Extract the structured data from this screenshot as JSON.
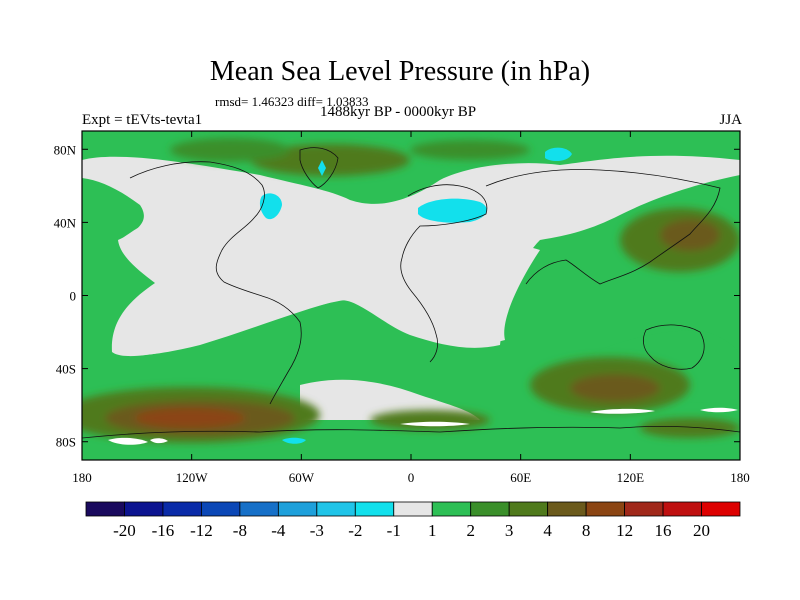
{
  "chart_data": {
    "type": "heatmap",
    "title": "Mean Sea Level Pressure (in hPa)",
    "stats_text": "rmsd= 1.46323 diff= 1.03833",
    "left_label": "Expt = tEVts-tevta1",
    "center_label": "1488kyr BP - 0000kyr BP",
    "right_label": "JJA",
    "x_ticks": [
      "180",
      "120W",
      "60W",
      "0",
      "60E",
      "120E",
      "180"
    ],
    "y_ticks": [
      "80N",
      "40N",
      "0",
      "40S",
      "80S"
    ],
    "xlim": [
      -180,
      180
    ],
    "ylim": [
      -90,
      90
    ],
    "colorbar": {
      "labels": [
        "-20",
        "-16",
        "-12",
        "-8",
        "-4",
        "-3",
        "-2",
        "-1",
        "1",
        "2",
        "3",
        "4",
        "8",
        "12",
        "16",
        "20"
      ],
      "colors": [
        "#1a0a5e",
        "#0c1490",
        "#0a2ba8",
        "#0b47b6",
        "#1670c8",
        "#1ea0db",
        "#20c4e8",
        "#12e0ec",
        "#e6e6e6",
        "#2dbf55",
        "#3a8f2a",
        "#4f7a1c",
        "#6b5a1c",
        "#8b4513",
        "#a0281a",
        "#bf1010",
        "#dd0000"
      ]
    }
  }
}
